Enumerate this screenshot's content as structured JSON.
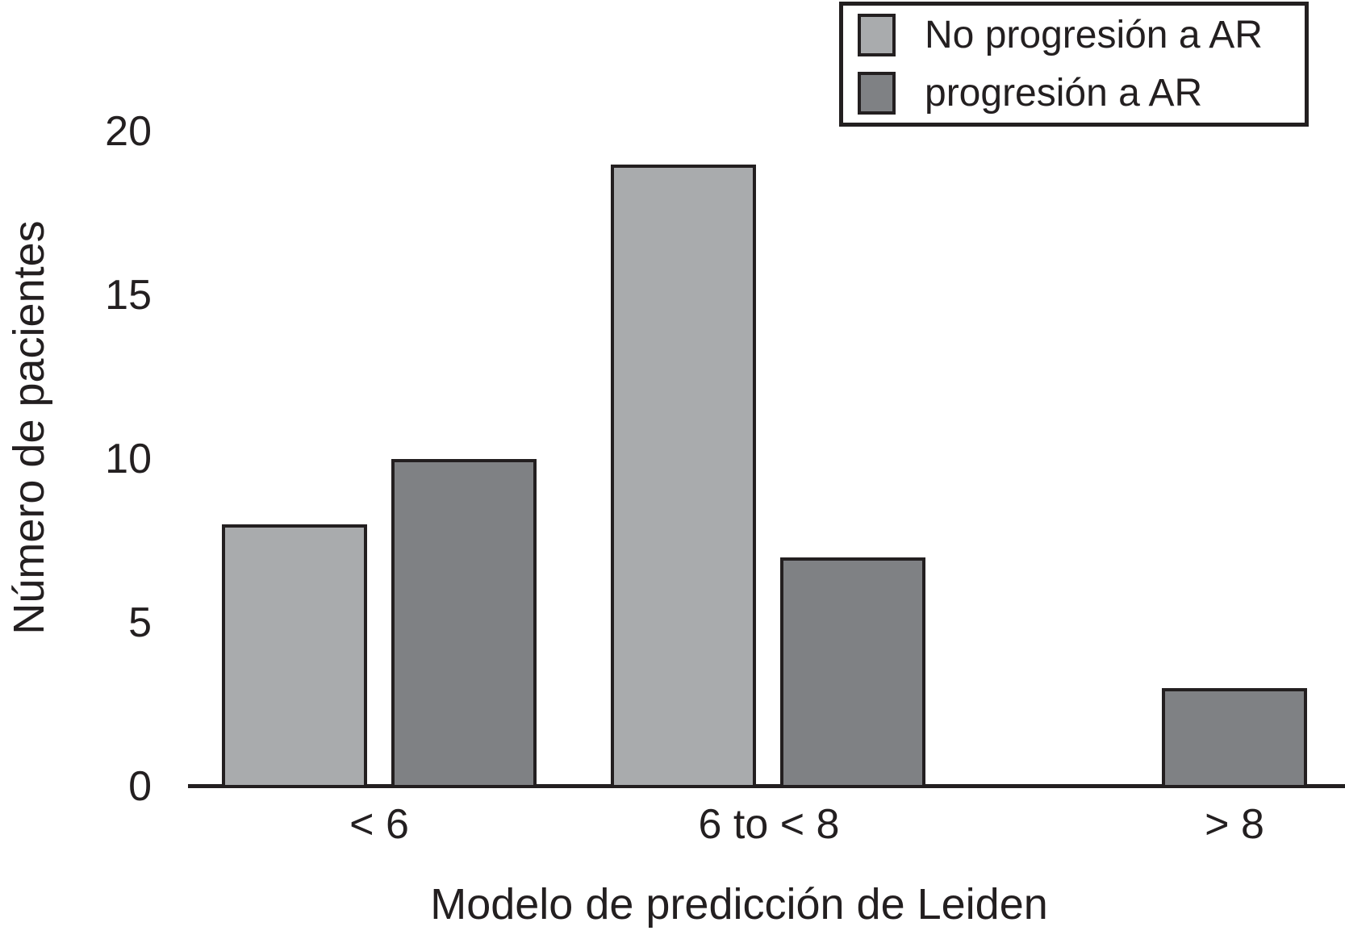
{
  "chart_data": {
    "type": "bar",
    "title": "",
    "xlabel": "Modelo de predicción de Leiden",
    "ylabel": "Número de pacientes",
    "categories": [
      "< 6",
      "6 to < 8",
      "> 8"
    ],
    "series": [
      {
        "name": "No progresión a AR",
        "color": "#a9abad",
        "values": [
          8,
          19,
          0
        ]
      },
      {
        "name": "progresión a AR",
        "color": "#7f8184",
        "values": [
          10,
          7,
          3
        ]
      }
    ],
    "ylim": [
      0,
      20
    ],
    "yticks": [
      0,
      5,
      10,
      15,
      20
    ],
    "grid": false,
    "legend_position": "top-right",
    "bar_border_color": "#231f20",
    "axis_color": "#231f20",
    "background_color": "#ffffff"
  }
}
